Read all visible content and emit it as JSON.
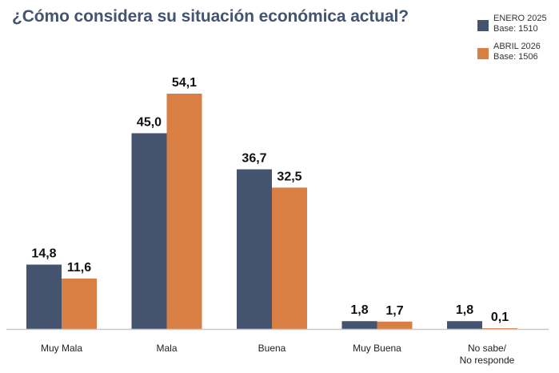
{
  "chart_data": {
    "type": "bar",
    "title": "¿Cómo considera su situación económica actual?",
    "categories": [
      "Muy Mala",
      "Mala",
      "Buena",
      "Muy Buena",
      "No sabe/\nNo responde"
    ],
    "series": [
      {
        "name": "ENERO 2025",
        "base": "Base: 1510",
        "color": "#44546f",
        "values": [
          14.8,
          45.0,
          36.7,
          1.8,
          1.8
        ],
        "labels": [
          "14,8",
          "45,0",
          "36,7",
          "1,8",
          "1,8"
        ]
      },
      {
        "name": "ABRIL 2026",
        "base": "Base: 1506",
        "color": "#d97f43",
        "values": [
          11.6,
          54.1,
          32.5,
          1.7,
          0.1
        ],
        "labels": [
          "11,6",
          "54,1",
          "32,5",
          "1,7",
          "0,1"
        ]
      }
    ],
    "xlabel": "",
    "ylabel": "",
    "ylim": [
      0,
      54.1
    ],
    "grid": false,
    "legend_position": "top-right"
  }
}
